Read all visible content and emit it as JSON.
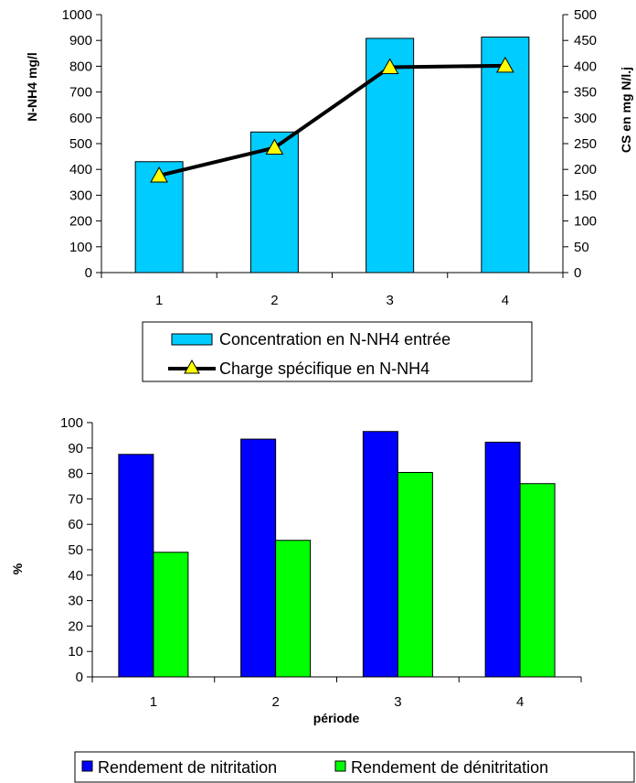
{
  "chart_data": [
    {
      "type": "bar+line",
      "categories": [
        "1",
        "2",
        "3",
        "4"
      ],
      "series": [
        {
          "name": "Concentration en N-NH4 entrée",
          "type": "bar",
          "axis": "left",
          "values": [
            430,
            545,
            908,
            913
          ],
          "color": "#00CCFF"
        },
        {
          "name": "Charge spécifique en N-NH4",
          "type": "line",
          "axis": "right",
          "values": [
            188,
            242,
            398,
            401
          ],
          "color": "#000000",
          "marker_color": "#FFFF00"
        }
      ],
      "ylabel": "N-NH4 mg/l",
      "y2label": "CS en mg N/l.j",
      "ylim": [
        0,
        1000
      ],
      "y2lim": [
        0,
        500
      ],
      "yticks": [
        "0",
        "100",
        "200",
        "300",
        "400",
        "500",
        "600",
        "700",
        "800",
        "900",
        "1000"
      ],
      "y2ticks": [
        "0",
        "50",
        "100",
        "150",
        "200",
        "250",
        "300",
        "350",
        "400",
        "450",
        "500"
      ],
      "grid": false,
      "legend_position": "bottom"
    },
    {
      "type": "bar",
      "categories": [
        "1",
        "2",
        "3",
        "4"
      ],
      "series": [
        {
          "name": "Rendement de nitritation",
          "values": [
            87.5,
            93.5,
            96.5,
            92.3
          ],
          "color": "#0000FF"
        },
        {
          "name": "Rendement de dénitritation",
          "values": [
            49,
            53.7,
            80.4,
            76
          ],
          "color": "#00FF00"
        }
      ],
      "xlabel": "période",
      "ylabel": "%",
      "ylim": [
        0,
        100
      ],
      "yticks": [
        "0",
        "10",
        "20",
        "30",
        "40",
        "50",
        "60",
        "70",
        "80",
        "90",
        "100"
      ],
      "grid": false,
      "legend_position": "bottom"
    }
  ]
}
